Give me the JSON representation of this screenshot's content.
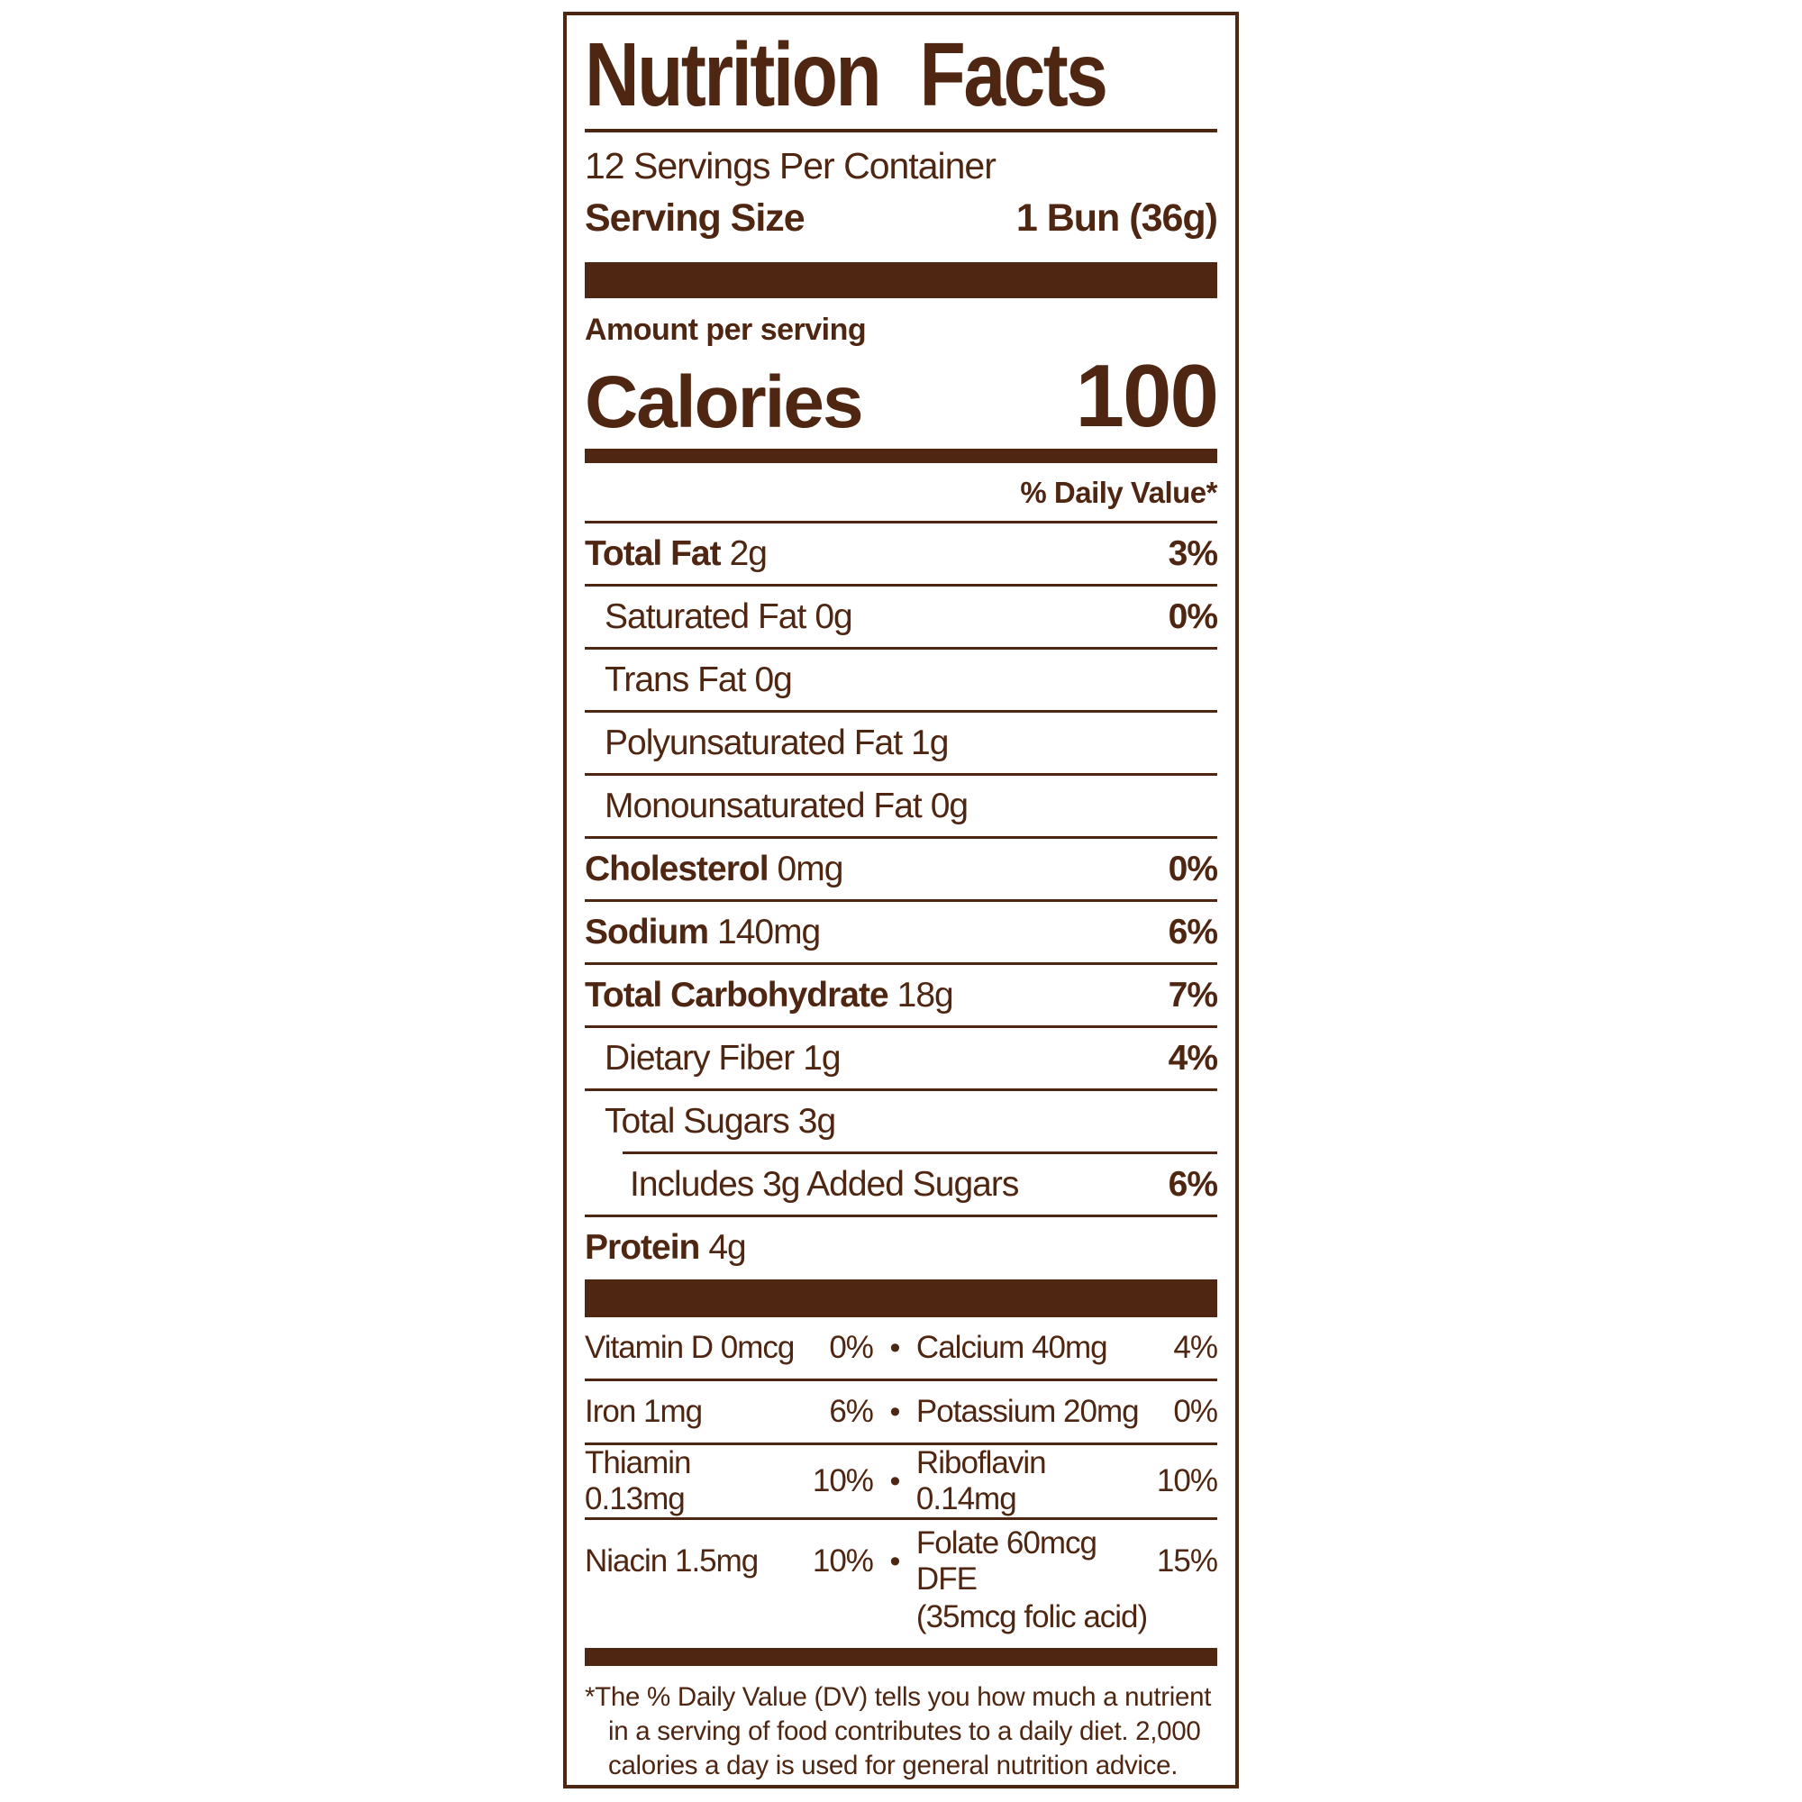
{
  "colors": {
    "ink": "#4e2611"
  },
  "header": {
    "title": "Nutrition Facts",
    "servings_per_container": "12 Servings Per Container",
    "serving_size_label": "Serving Size",
    "serving_size_value": "1 Bun (36g)"
  },
  "calories": {
    "amount_per_serving": "Amount per serving",
    "label": "Calories",
    "value": "100"
  },
  "daily_value_header": "% Daily Value*",
  "nutrients": {
    "rows": [
      {
        "name": "Total Fat",
        "amount": "2g",
        "dv": "3%"
      },
      {
        "name": "Saturated Fat",
        "amount": "0g",
        "dv": "0%"
      },
      {
        "name": "Trans Fat",
        "amount": "0g",
        "dv": ""
      },
      {
        "name": "Polyunsaturated Fat",
        "amount": "1g",
        "dv": ""
      },
      {
        "name": "Monounsaturated Fat",
        "amount": "0g",
        "dv": ""
      },
      {
        "name": "Cholesterol",
        "amount": "0mg",
        "dv": "0%"
      },
      {
        "name": "Sodium",
        "amount": "140mg",
        "dv": "6%"
      },
      {
        "name": "Total Carbohydrate",
        "amount": "18g",
        "dv": "7%"
      },
      {
        "name": "Dietary Fiber",
        "amount": "1g",
        "dv": "4%"
      },
      {
        "name": "Total Sugars",
        "amount": "3g",
        "dv": ""
      },
      {
        "name": "Includes 3g Added Sugars",
        "amount": "",
        "dv": "6%"
      },
      {
        "name": "Protein",
        "amount": "4g",
        "dv": ""
      }
    ]
  },
  "vitamins": {
    "bullet": "•",
    "rows": [
      {
        "left_name": "Vitamin D 0mcg",
        "left_dv": "0%",
        "right_name": "Calcium 40mg",
        "right_dv": "4%"
      },
      {
        "left_name": "Iron 1mg",
        "left_dv": "6%",
        "right_name": "Potassium 20mg",
        "right_dv": "0%"
      },
      {
        "left_name": "Thiamin 0.13mg",
        "left_dv": "10%",
        "right_name": "Riboflavin 0.14mg",
        "right_dv": "10%"
      },
      {
        "left_name": "Niacin 1.5mg",
        "left_dv": "10%",
        "right_name": "Folate 60mcg DFE",
        "right_dv": "15%",
        "right_note": "(35mcg folic acid)"
      }
    ]
  },
  "footnote": "*The % Daily Value (DV) tells you how much a nutrient in a serving of food contributes to a daily diet. 2,000 calories a day is used for general nutrition advice."
}
